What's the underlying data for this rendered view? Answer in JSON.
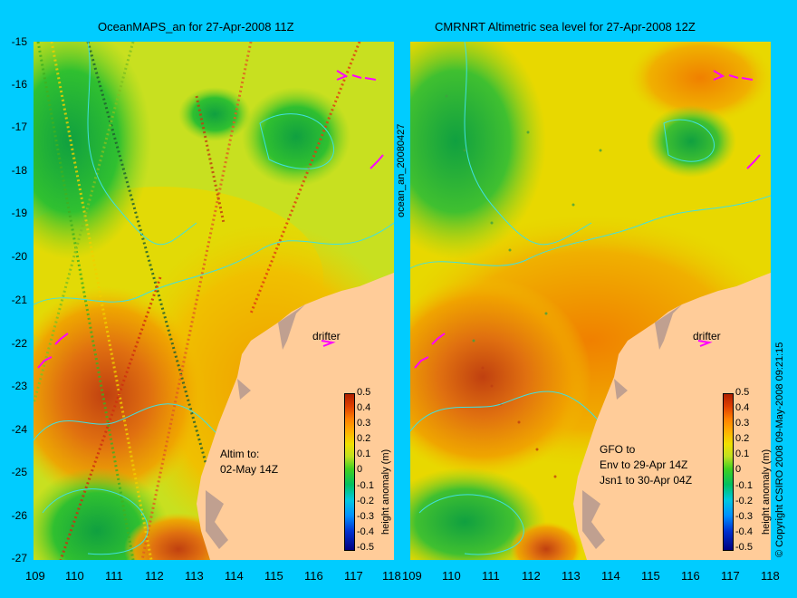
{
  "left": {
    "title": "OceanMAPS_an for 27-Apr-2008 11Z",
    "note_line1": "Altim to:",
    "note_line2": "02-May 14Z",
    "drifter": "drifter"
  },
  "right": {
    "title": "CMRNRT Altimetric sea level  for 27-Apr-2008 12Z",
    "note_line1": "GFO to",
    "note_line2": "Env to 29-Apr 14Z",
    "note_line3": "Jsn1 to 30-Apr 04Z",
    "drifter": "drifter"
  },
  "side_label": "ocean_an_20080427",
  "footer_right": "© Copyright CSIRO 2008   09-May-2008 09:21:15",
  "colorbar_label": "height anomaly (m)",
  "colorbar_ticks": [
    "0.5",
    "0.4",
    "0.3",
    "0.2",
    "0.1",
    "0",
    "-0.1",
    "-0.2",
    "-0.3",
    "-0.4",
    "-0.5"
  ],
  "y_axis": [
    "-15",
    "-16",
    "-17",
    "-18",
    "-19",
    "-20",
    "-21",
    "-22",
    "-23",
    "-24",
    "-25",
    "-26",
    "-27"
  ],
  "x_axis": [
    "109",
    "110",
    "111",
    "112",
    "113",
    "114",
    "115",
    "116",
    "117",
    "118"
  ],
  "colors": {
    "background": "#00ccff",
    "land": "#ffcc99",
    "coast_shade": "#c0a090",
    "contour": "#40e0e0",
    "drifter_arrow": "#ff00ff"
  }
}
